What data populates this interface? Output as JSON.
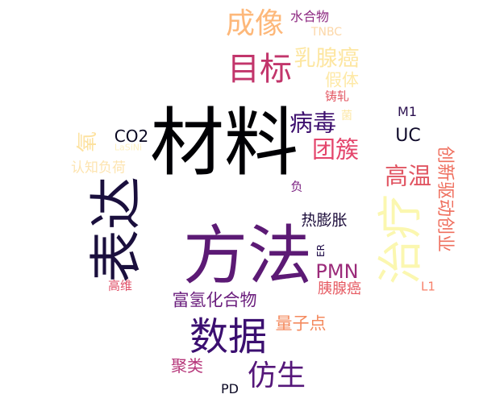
{
  "words": [
    {
      "text": "材料",
      "color": "#000004",
      "orientation": "horizontal"
    },
    {
      "text": "方法",
      "color": "#5c1a75",
      "orientation": "horizontal"
    },
    {
      "text": "表达",
      "color": "#1a0f3d",
      "orientation": "vertical"
    },
    {
      "text": "治疗",
      "color": "#fbf7b0",
      "orientation": "vertical"
    },
    {
      "text": "数据",
      "color": "#3b0f70",
      "orientation": "horizontal"
    },
    {
      "text": "目标",
      "color": "#c2356b",
      "orientation": "horizontal"
    },
    {
      "text": "成像",
      "color": "#fdb87a",
      "orientation": "horizontal"
    },
    {
      "text": "仿生",
      "color": "#55177a",
      "orientation": "horizontal"
    },
    {
      "text": "病毒",
      "color": "#3d0f6e",
      "orientation": "horizontal"
    },
    {
      "text": "团簇",
      "color": "#e4466c",
      "orientation": "horizontal"
    },
    {
      "text": "高温",
      "color": "#e15663",
      "orientation": "horizontal"
    },
    {
      "text": "乳腺癌",
      "color": "#fde6a0",
      "orientation": "horizontal"
    },
    {
      "text": "创新驱动创业",
      "color": "#ef6f5e",
      "orientation": "vertical-down"
    },
    {
      "text": "PMN",
      "color": "#9b2b7a",
      "orientation": "horizontal"
    },
    {
      "text": "富氢化合物",
      "color": "#6a1d7c",
      "orientation": "horizontal"
    },
    {
      "text": "量子点",
      "color": "#f48a5e",
      "orientation": "horizontal"
    },
    {
      "text": "氧",
      "color": "#fde2a0",
      "orientation": "vertical"
    },
    {
      "text": "假体",
      "color": "#fee9a6",
      "orientation": "horizontal"
    },
    {
      "text": "热膨胀",
      "color": "#1b0c3a",
      "orientation": "horizontal"
    },
    {
      "text": "UC",
      "color": "#0f0a2a",
      "orientation": "horizontal"
    },
    {
      "text": "CO2",
      "color": "#0a0822",
      "orientation": "horizontal"
    },
    {
      "text": "聚类",
      "color": "#b6367a",
      "orientation": "horizontal"
    },
    {
      "text": "胰腺癌",
      "color": "#e65a62",
      "orientation": "horizontal"
    },
    {
      "text": "认知负荷",
      "color": "#fde4b0",
      "orientation": "horizontal"
    },
    {
      "text": "水合物",
      "color": "#8e2a82",
      "orientation": "horizontal"
    },
    {
      "text": "TNBC",
      "color": "#fcd7a8",
      "orientation": "horizontal"
    },
    {
      "text": "铸轧",
      "color": "#e35a65",
      "orientation": "horizontal"
    },
    {
      "text": "M1",
      "color": "#2c1150",
      "orientation": "horizontal"
    },
    {
      "text": "高维",
      "color": "#e0526a",
      "orientation": "horizontal"
    },
    {
      "text": "L1",
      "color": "#f7806a",
      "orientation": "horizontal"
    },
    {
      "text": "PD",
      "color": "#0b0924",
      "orientation": "horizontal"
    },
    {
      "text": "负",
      "color": "#7c2382",
      "orientation": "horizontal"
    },
    {
      "text": "ER",
      "color": "#1f0c48",
      "orientation": "vertical"
    },
    {
      "text": "菌",
      "color": "#fde8a8",
      "orientation": "horizontal"
    },
    {
      "text": "LaSiNi",
      "color": "#fef0c0",
      "orientation": "horizontal"
    }
  ]
}
